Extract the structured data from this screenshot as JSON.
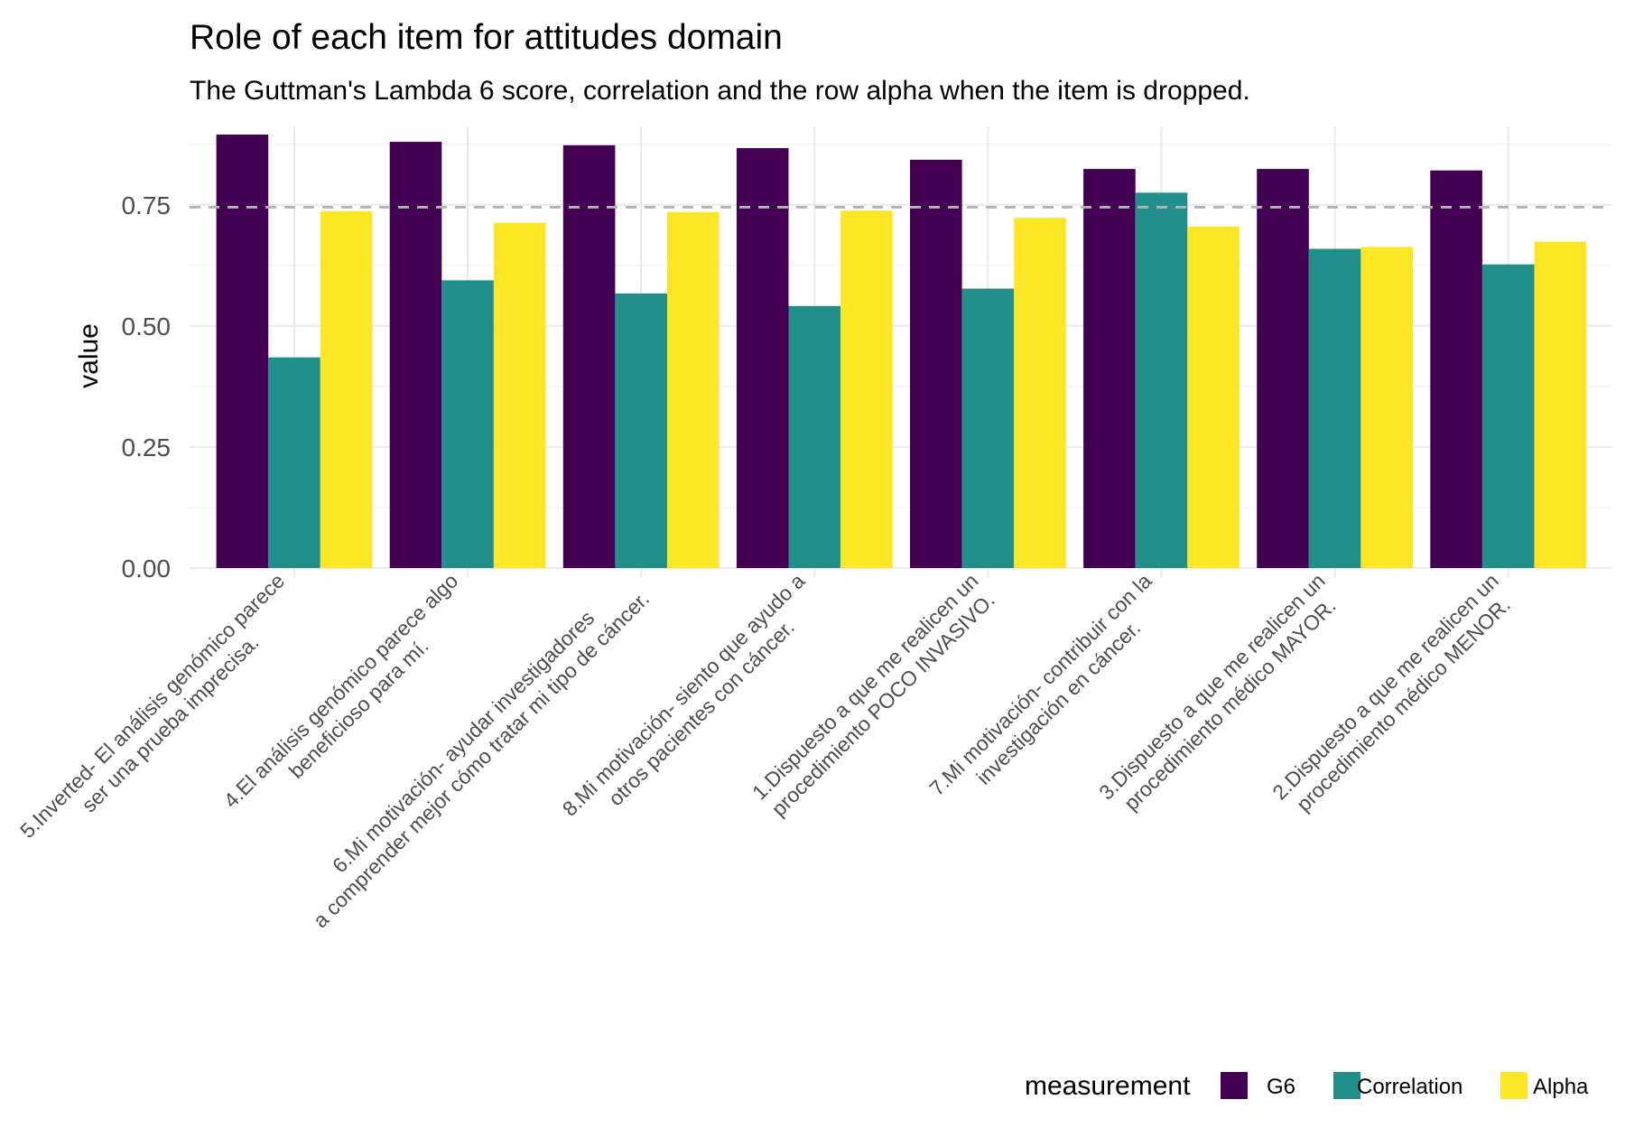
{
  "chart_data": {
    "type": "bar",
    "title": "Role of each item for attitudes domain",
    "subtitle": "The Guttman's Lambda 6 score, correlation and the row alpha when the item is dropped.",
    "xlabel": "",
    "ylabel": "value",
    "ylim": [
      0,
      0.93
    ],
    "yticks": [
      "0.00",
      "0.25",
      "0.50",
      "0.75"
    ],
    "ytick_values": [
      0,
      0.25,
      0.5,
      0.75
    ],
    "reference_line": 0.745,
    "grid": true,
    "legend_title": "measurement",
    "legend_position": "bottom-right",
    "categories": [
      [
        "5.Inverted- El análisis genómico parece",
        "ser una prueba imprecisa."
      ],
      [
        "4.El análisis genómico parece algo",
        "beneficioso para mí."
      ],
      [
        "6.Mi motivación- ayudar investigadores",
        "a comprender mejor cómo tratar mi tipo de cáncer."
      ],
      [
        "8.Mi motivación- siento que ayudo a",
        "otros pacientes con cáncer."
      ],
      [
        "1.Dispuesto a que me realicen un",
        "procedimiento POCO INVASIVO."
      ],
      [
        "7.Mi motivación- contribuir con la",
        "investigación en cáncer."
      ],
      [
        "3.Dispuesto a que me realicen un",
        "procedimiento médico MAYOR."
      ],
      [
        "2.Dispuesto a que me realicen un",
        "procedimiento médico MENOR."
      ]
    ],
    "series": [
      {
        "name": "G6",
        "color": "#440154",
        "values": [
          0.895,
          0.88,
          0.873,
          0.867,
          0.843,
          0.824,
          0.824,
          0.821
        ]
      },
      {
        "name": "Correlation",
        "color": "#21908C",
        "values": [
          0.435,
          0.594,
          0.567,
          0.541,
          0.577,
          0.775,
          0.659,
          0.627
        ]
      },
      {
        "name": "Alpha",
        "color": "#FDE725",
        "values": [
          0.737,
          0.713,
          0.735,
          0.738,
          0.723,
          0.705,
          0.663,
          0.674
        ]
      }
    ]
  }
}
